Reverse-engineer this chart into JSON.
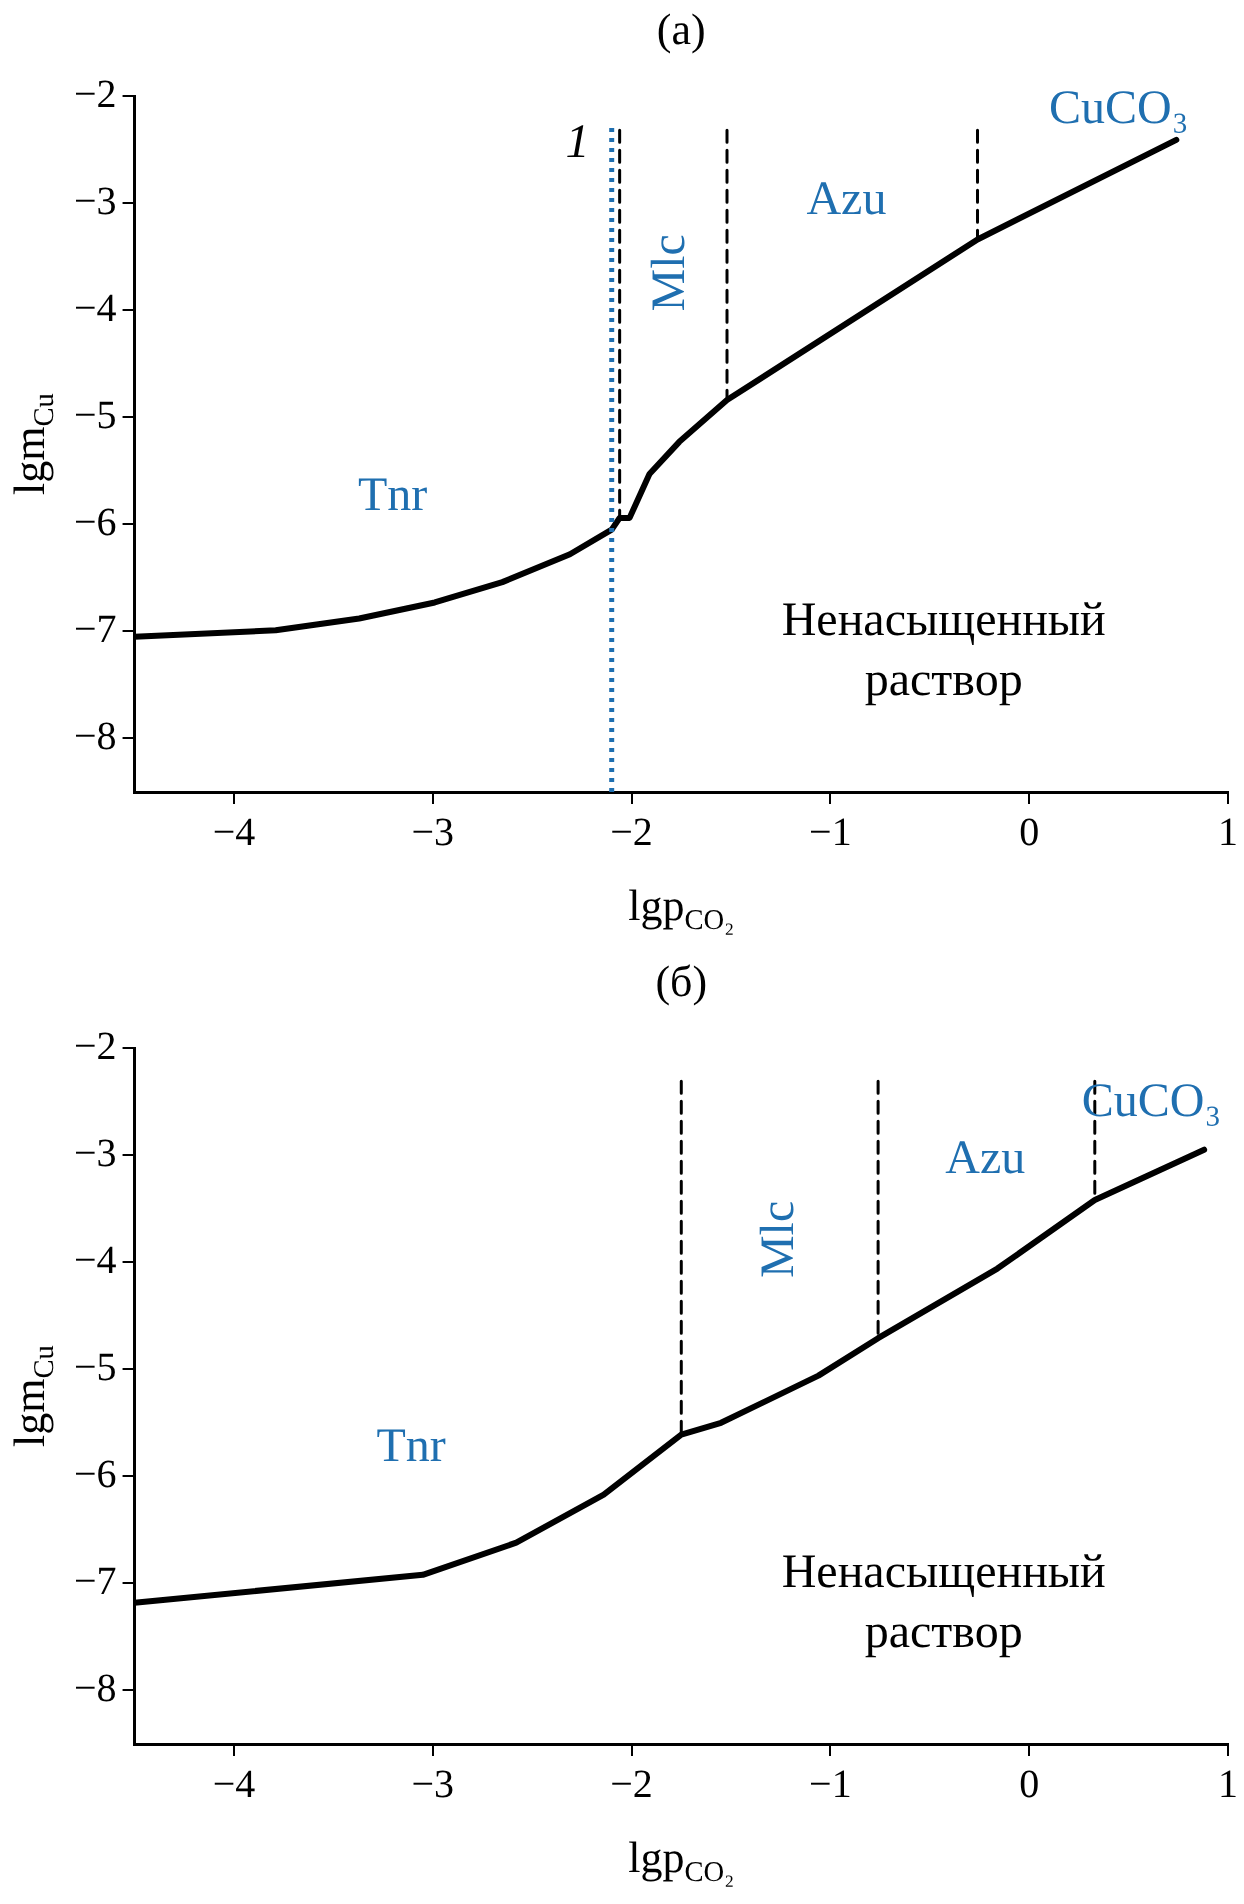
{
  "chart_data": [
    {
      "type": "line",
      "title": "(а)",
      "xlabel": "lgp$_{CO₂}$",
      "ylabel": "lgm$_{Cu}$",
      "xlim": [
        -4.5,
        1
      ],
      "xticks": [
        -4,
        -3,
        -2,
        -1,
        0,
        1
      ],
      "ylim": [
        -8.5,
        -2
      ],
      "yticks": [
        -8,
        -7,
        -6,
        -5,
        -4,
        -3,
        -2
      ],
      "grid": false,
      "legend": false,
      "marker": "none",
      "series": [
        {
          "color": "#000000",
          "x": [
            -4.5,
            -3.79,
            -3.37,
            -2.99,
            -2.65,
            -2.31,
            -2.1,
            -2.06,
            -2.01,
            -1.91,
            -1.76,
            -1.52,
            -0.26,
            0.74
          ],
          "values": [
            -7.05,
            -6.99,
            -6.88,
            -6.73,
            -6.54,
            -6.28,
            -6.05,
            -5.94,
            -5.94,
            -5.53,
            -5.23,
            -4.84,
            -3.34,
            -2.41
          ]
        },
        {
          "color": "#000000",
          "line_style": "dashed",
          "x": [
            -2.06,
            -2.06
          ],
          "values": [
            -2.32,
            -5.94
          ]
        },
        {
          "color": "#000000",
          "line_style": "dashed",
          "x": [
            -1.52,
            -1.52
          ],
          "values": [
            -2.32,
            -4.84
          ]
        },
        {
          "color": "#000000",
          "line_style": "dashed",
          "x": [
            -0.26,
            -0.26
          ],
          "values": [
            -2.32,
            -3.34
          ]
        }
      ],
      "ref_lines": [
        {
          "axis": "x",
          "value": -2.1,
          "color": "#1f6fb0",
          "line_style": "dotted"
        }
      ],
      "annotations": [
        "Tnr",
        "Mlc",
        "Azu",
        "CuCO₃",
        "Ненасыщенный\nраствор",
        "1"
      ]
    },
    {
      "type": "line",
      "title": "(б)",
      "xlabel": "lgp$_{CO₂}$",
      "ylabel": "lgm$_{Cu}$",
      "xlim": [
        -4.5,
        1
      ],
      "xticks": [
        -4,
        -3,
        -2,
        -1,
        0,
        1
      ],
      "ylim": [
        -8.5,
        -2
      ],
      "yticks": [
        -8,
        -7,
        -6,
        -5,
        -4,
        -3,
        -2
      ],
      "grid": false,
      "legend": false,
      "marker": "none",
      "series": [
        {
          "color": "#000000",
          "x": [
            -4.5,
            -3.05,
            -2.58,
            -2.14,
            -1.75,
            -1.55,
            -1.06,
            -0.76,
            -0.16,
            0.33,
            0.88
          ],
          "values": [
            -7.18,
            -6.92,
            -6.62,
            -6.17,
            -5.61,
            -5.5,
            -5.06,
            -4.71,
            -4.06,
            -3.42,
            -2.95
          ]
        },
        {
          "color": "#000000",
          "line_style": "dashed",
          "x": [
            -1.75,
            -1.75
          ],
          "values": [
            -2.31,
            -5.61
          ]
        },
        {
          "color": "#000000",
          "line_style": "dashed",
          "x": [
            -0.76,
            -0.76
          ],
          "values": [
            -2.31,
            -4.71
          ]
        },
        {
          "color": "#000000",
          "line_style": "dashed",
          "x": [
            0.33,
            0.33
          ],
          "values": [
            -2.31,
            -3.42
          ]
        }
      ],
      "annotations": [
        "Tnr",
        "Mlc",
        "Azu",
        "CuCO₃",
        "Ненасыщенный\nраствор"
      ]
    }
  ]
}
